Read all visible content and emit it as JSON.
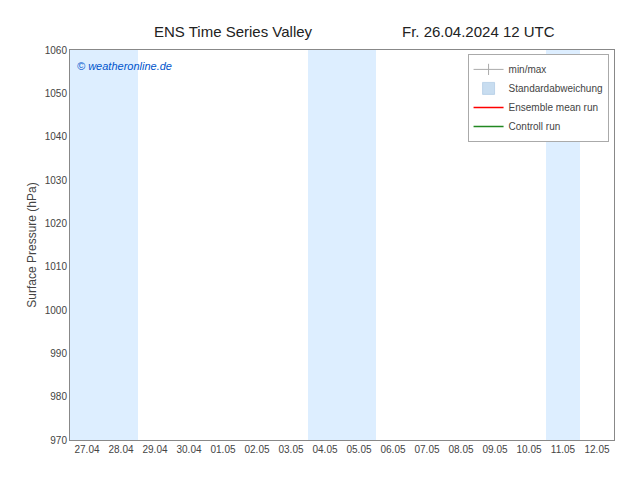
{
  "chart_data": {
    "type": "line",
    "title": "ENS Time Series Valley",
    "subtitle": "Fr. 26.04.2024 12 UTC",
    "y_label": "Surface Pressure (hPa)",
    "categories": [
      "27.04",
      "28.04",
      "29.04",
      "30.04",
      "01.05",
      "02.05",
      "03.05",
      "04.05",
      "05.05",
      "06.05",
      "07.05",
      "08.05",
      "09.05",
      "10.05",
      "11.05",
      "12.05"
    ],
    "ylim": [
      970,
      1060
    ],
    "yticks": [
      970,
      980,
      990,
      1000,
      1010,
      1020,
      1030,
      1040,
      1050,
      1060
    ],
    "grid": false,
    "legend": "upper right",
    "series": [
      {
        "name": "min/max",
        "type": "errorbar",
        "color": "#aaaaaa",
        "marker": "tick",
        "values": [
          null,
          null,
          null,
          null,
          null,
          null,
          null,
          null,
          null,
          null,
          null,
          null,
          null,
          null,
          null,
          null
        ]
      },
      {
        "name": "Standardabweichung",
        "type": "bar",
        "color": "#c8ddf0",
        "values": [
          null,
          null,
          null,
          null,
          null,
          null,
          null,
          null,
          null,
          null,
          null,
          null,
          null,
          null,
          null,
          null
        ]
      },
      {
        "name": "Ensemble mean run",
        "type": "line",
        "color": "#ff0000",
        "values": [
          null,
          null,
          null,
          null,
          null,
          null,
          null,
          null,
          null,
          null,
          null,
          null,
          null,
          null,
          null,
          null
        ]
      },
      {
        "name": "Controll run",
        "type": "line",
        "color": "#228822",
        "values": [
          null,
          null,
          null,
          null,
          null,
          null,
          null,
          null,
          null,
          null,
          null,
          null,
          null,
          null,
          null,
          null
        ]
      }
    ],
    "bands": [
      {
        "from": "27.04",
        "to": "28.04",
        "color": "#ddeeff"
      },
      {
        "from": "04.05",
        "to": "05.05",
        "color": "#ddeeff"
      },
      {
        "from": "11.05",
        "to": "11.05",
        "color": "#ddeeff"
      }
    ],
    "annotations": [
      {
        "text": "© weatheronline.de",
        "color": "#0055cc"
      }
    ]
  }
}
